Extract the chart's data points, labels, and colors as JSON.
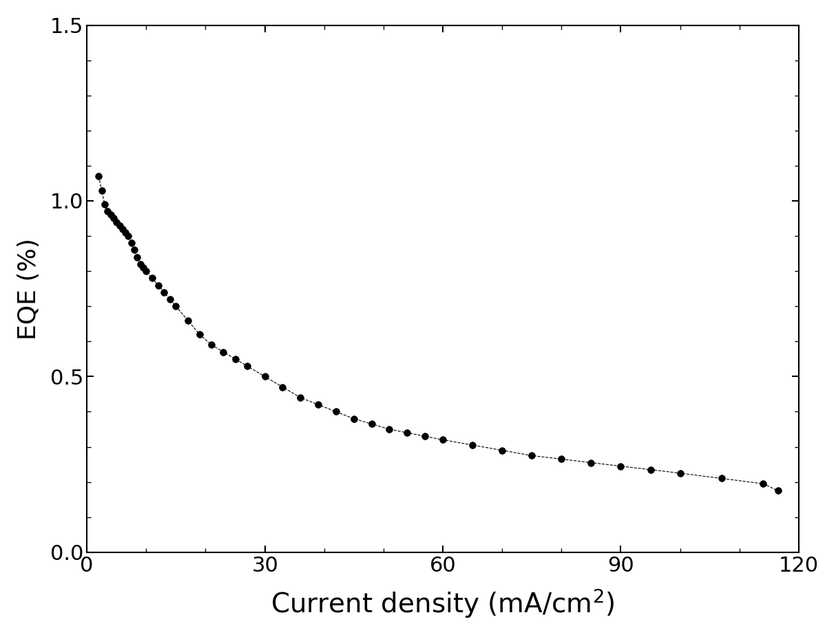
{
  "x": [
    2.0,
    2.5,
    3.0,
    3.5,
    4.0,
    4.5,
    5.0,
    5.5,
    6.0,
    6.5,
    7.0,
    7.5,
    8.0,
    8.5,
    9.0,
    9.5,
    10.0,
    11.0,
    12.0,
    13.0,
    14.0,
    15.0,
    17.0,
    19.0,
    21.0,
    23.0,
    25.0,
    27.0,
    30.0,
    33.0,
    36.0,
    39.0,
    42.0,
    45.0,
    48.0,
    51.0,
    54.0,
    57.0,
    60.0,
    65.0,
    70.0,
    75.0,
    80.0,
    85.0,
    90.0,
    95.0,
    100.0,
    107.0,
    114.0,
    116.5
  ],
  "y": [
    1.07,
    1.03,
    0.99,
    0.97,
    0.96,
    0.95,
    0.94,
    0.93,
    0.92,
    0.91,
    0.9,
    0.88,
    0.86,
    0.84,
    0.82,
    0.81,
    0.8,
    0.78,
    0.76,
    0.74,
    0.72,
    0.7,
    0.66,
    0.62,
    0.59,
    0.57,
    0.55,
    0.53,
    0.5,
    0.47,
    0.44,
    0.42,
    0.4,
    0.38,
    0.365,
    0.35,
    0.34,
    0.33,
    0.32,
    0.305,
    0.29,
    0.275,
    0.265,
    0.255,
    0.245,
    0.235,
    0.225,
    0.21,
    0.195,
    0.175
  ],
  "xlabel": "Current density (mA/cm$^2$)",
  "ylabel": "EQE (%)",
  "xlim": [
    0,
    120
  ],
  "ylim": [
    0.0,
    1.5
  ],
  "xticks": [
    0,
    30,
    60,
    90,
    120
  ],
  "yticks": [
    0.0,
    0.5,
    1.0,
    1.5
  ],
  "line_color": "#000000",
  "marker_color": "#000000",
  "marker_size": 7,
  "line_width": 0.8,
  "xlabel_fontsize": 28,
  "ylabel_fontsize": 26,
  "tick_fontsize": 22,
  "figure_bgcolor": "#ffffff",
  "axes_bgcolor": "#ffffff"
}
